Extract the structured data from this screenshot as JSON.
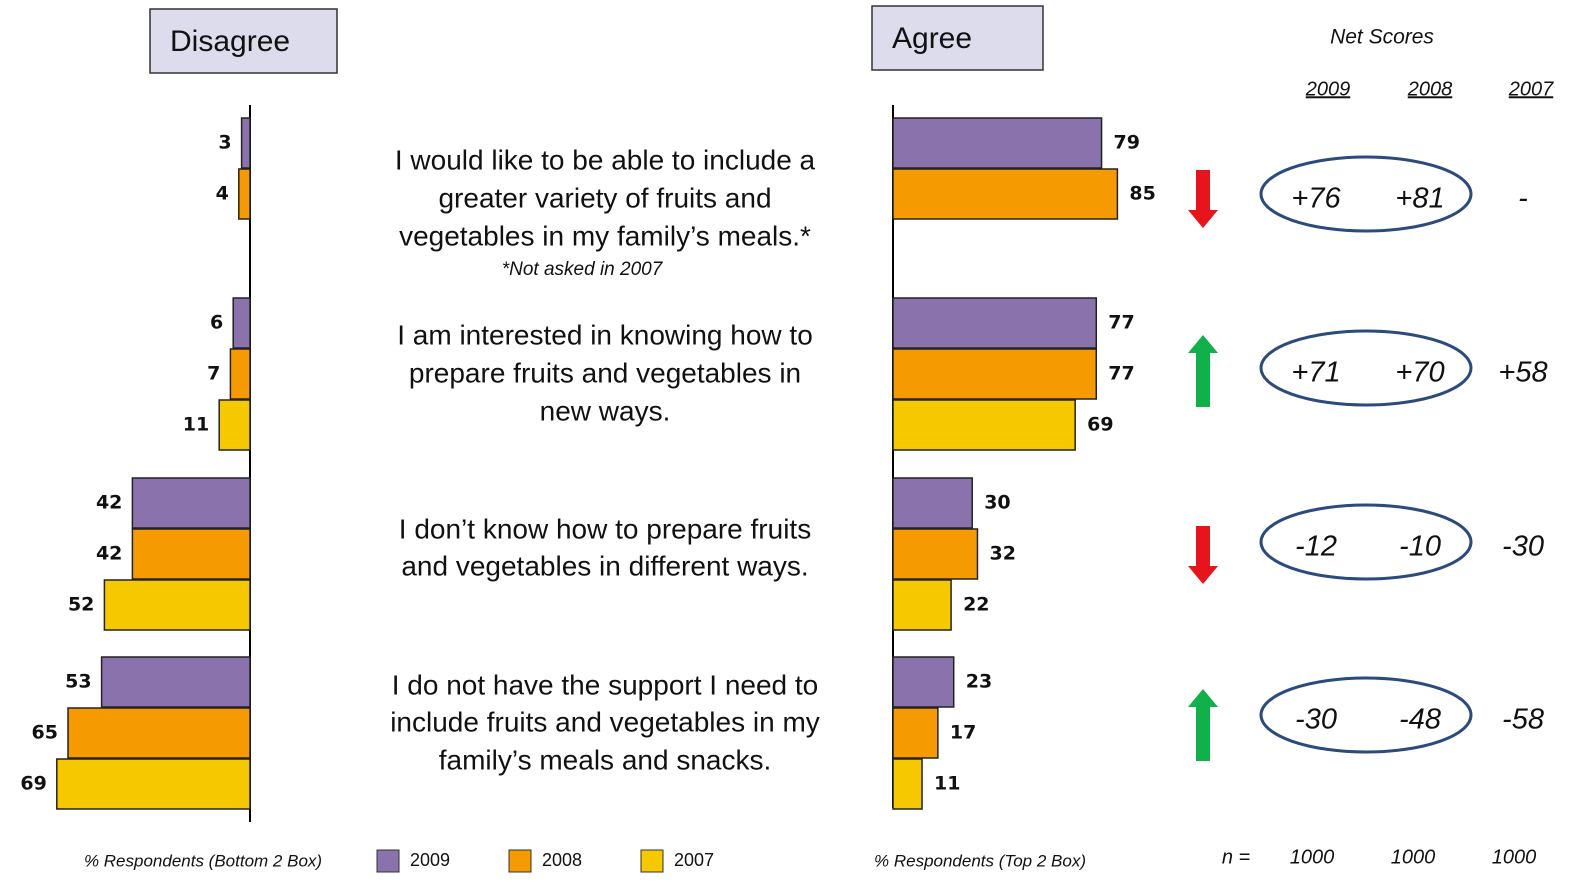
{
  "chart_data": [
    {
      "type": "bar",
      "side": "left",
      "title": "Disagree",
      "x_label": "% Respondents (Bottom 2 Box)",
      "series": [
        {
          "name": "2009",
          "color": "#8a72ad",
          "values": [
            3,
            6,
            42,
            53
          ]
        },
        {
          "name": "2008",
          "color": "#f59a00",
          "values": [
            4,
            7,
            42,
            65
          ]
        },
        {
          "name": "2007",
          "color": "#f5c800",
          "values": [
            null,
            11,
            52,
            69
          ]
        }
      ]
    },
    {
      "type": "bar",
      "side": "right",
      "title": "Agree",
      "x_label": "% Respondents (Top 2 Box)",
      "series": [
        {
          "color": "#8a72ad",
          "values": [
            79,
            77,
            30,
            23
          ]
        },
        {
          "color": "#f59a00",
          "values": [
            85,
            77,
            32,
            17
          ]
        },
        {
          "color": "#f5c800",
          "values": [
            null,
            69,
            22,
            11
          ]
        }
      ]
    }
  ],
  "statements": [
    [
      "I would like to be able to include a",
      "greater variety of fruits and",
      "vegetables in my family’s meals.*"
    ],
    [
      "I am interested in knowing how to",
      "prepare fruits and vegetables in",
      "new ways."
    ],
    [
      "I don’t know how to prepare fruits",
      "and vegetables in different ways."
    ],
    [
      "I do not have the support I need to",
      "include fruits and vegetables in my",
      "family’s meals and snacks."
    ]
  ],
  "footnote": "*Not asked in 2007",
  "trend": [
    "down",
    "up",
    "down",
    "up"
  ],
  "net_scores": {
    "title": "Net Scores",
    "years": [
      "2009",
      "2008",
      "2007"
    ],
    "rows": [
      [
        "+76",
        "+81",
        "-"
      ],
      [
        "+71",
        "+70",
        "+58"
      ],
      [
        "-12",
        "-10",
        "-30"
      ],
      [
        "-30",
        "-48",
        "-58"
      ]
    ],
    "n_label": "n =",
    "n": [
      1000,
      1000,
      1000
    ]
  }
}
